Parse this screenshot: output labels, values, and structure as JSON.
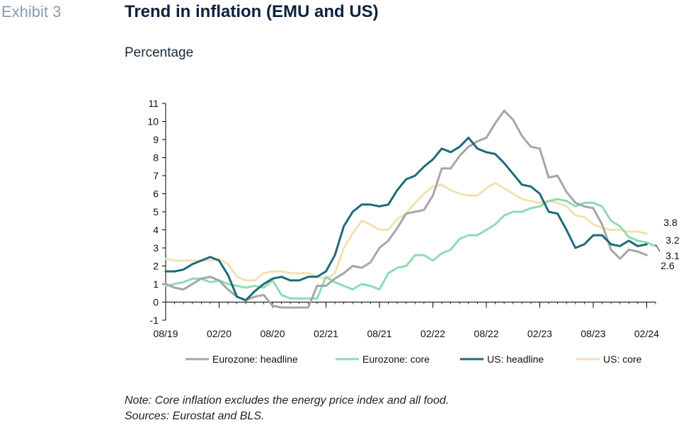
{
  "exhibit_label": "Exhibit 3",
  "chart_data": {
    "type": "line",
    "title": "Trend in inflation (EMU and US)",
    "subtitle": "Percentage",
    "xlabel": "",
    "ylabel": "",
    "ylim": [
      -1,
      11
    ],
    "yticks": [
      -1,
      0,
      1,
      2,
      3,
      4,
      5,
      6,
      7,
      8,
      9,
      10,
      11
    ],
    "x_tick_labels": [
      "08/19",
      "02/20",
      "08/20",
      "02/21",
      "08/21",
      "02/22",
      "08/22",
      "02/23",
      "08/23",
      "02/24"
    ],
    "x_start": "08/19",
    "x_end": "03/24",
    "grid": false,
    "legend_position": "bottom",
    "series": [
      {
        "name": "Eurozone: headline",
        "color": "#a6a6a6",
        "end_label": "2.6",
        "values": [
          1.0,
          0.8,
          0.7,
          1.0,
          1.3,
          1.4,
          1.2,
          0.7,
          0.3,
          0.1,
          0.3,
          0.4,
          -0.2,
          -0.3,
          -0.3,
          -0.3,
          -0.3,
          0.9,
          0.9,
          1.3,
          1.6,
          2.0,
          1.9,
          2.2,
          3.0,
          3.4,
          4.1,
          4.9,
          5.0,
          5.1,
          5.9,
          7.4,
          7.4,
          8.1,
          8.6,
          8.9,
          9.1,
          9.9,
          10.6,
          10.1,
          9.2,
          8.6,
          8.5,
          6.9,
          7.0,
          6.1,
          5.5,
          5.3,
          5.2,
          4.3,
          2.9,
          2.4,
          2.9,
          2.8,
          2.6
        ]
      },
      {
        "name": "Eurozone: core",
        "color": "#8edcb0",
        "end_label": "3.1",
        "values": [
          0.9,
          1.0,
          1.1,
          1.3,
          1.3,
          1.1,
          1.2,
          1.0,
          0.9,
          0.8,
          0.9,
          0.8,
          1.2,
          0.4,
          0.2,
          0.2,
          0.2,
          0.2,
          1.4,
          1.1,
          0.9,
          0.7,
          1.0,
          0.9,
          0.7,
          1.6,
          1.9,
          2.0,
          2.6,
          2.6,
          2.3,
          2.7,
          2.9,
          3.5,
          3.7,
          3.7,
          4.0,
          4.3,
          4.8,
          5.0,
          5.0,
          5.2,
          5.3,
          5.6,
          5.7,
          5.6,
          5.3,
          5.5,
          5.5,
          5.3,
          4.5,
          4.2,
          3.6,
          3.4,
          3.3,
          3.1
        ]
      },
      {
        "name": "US: headline",
        "color": "#1e6b78",
        "end_label": "3.2",
        "values": [
          1.7,
          1.7,
          1.8,
          2.1,
          2.3,
          2.5,
          2.3,
          1.5,
          0.3,
          0.1,
          0.6,
          1.0,
          1.3,
          1.4,
          1.2,
          1.2,
          1.4,
          1.4,
          1.7,
          2.6,
          4.2,
          5.0,
          5.4,
          5.4,
          5.3,
          5.4,
          6.2,
          6.8,
          7.0,
          7.5,
          7.9,
          8.5,
          8.3,
          8.6,
          9.1,
          8.5,
          8.3,
          8.2,
          7.7,
          7.1,
          6.5,
          6.4,
          6.0,
          5.0,
          4.9,
          4.0,
          3.0,
          3.2,
          3.7,
          3.7,
          3.2,
          3.1,
          3.4,
          3.1,
          3.2
        ]
      },
      {
        "name": "US: core",
        "color": "#f1e1b4",
        "end_label": "3.8",
        "values": [
          2.4,
          2.3,
          2.3,
          2.3,
          2.3,
          2.3,
          2.4,
          2.1,
          1.4,
          1.2,
          1.2,
          1.6,
          1.7,
          1.7,
          1.6,
          1.6,
          1.6,
          1.4,
          1.3,
          1.6,
          3.0,
          3.8,
          4.5,
          4.3,
          4.0,
          4.0,
          4.6,
          4.9,
          5.5,
          6.0,
          6.4,
          6.5,
          6.2,
          6.0,
          5.9,
          5.9,
          6.3,
          6.6,
          6.3,
          6.0,
          5.7,
          5.6,
          5.5,
          5.6,
          5.5,
          5.3,
          4.8,
          4.7,
          4.3,
          4.1,
          4.0,
          4.0,
          3.9,
          3.9,
          3.8
        ]
      }
    ]
  },
  "notes": [
    "Note: Core inflation excludes the energy price index and all food.",
    "Sources: Eurostat and BLS."
  ]
}
